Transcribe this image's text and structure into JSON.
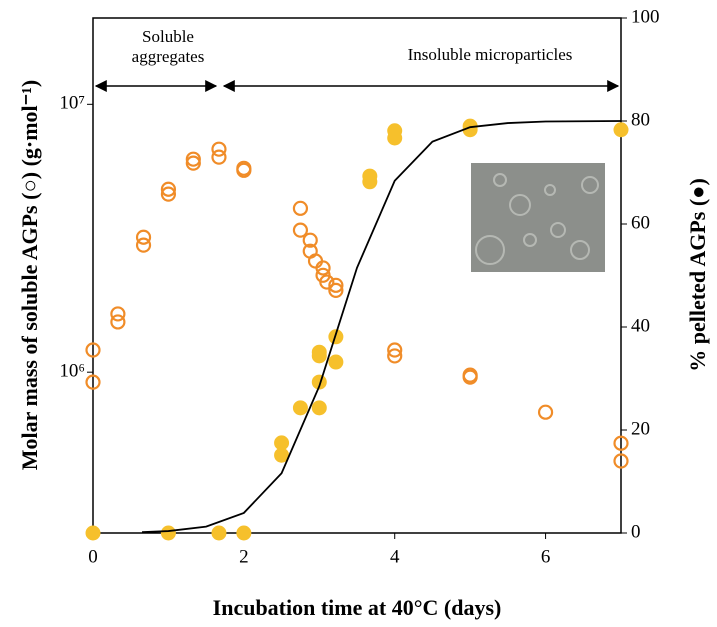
{
  "chart_data": {
    "type": "scatter",
    "x_label": "Incubation time at 40°C (days)",
    "y_label": "Molar mass of soluble AGPs (○) (g·mol⁻¹)",
    "y2_label": "% pelleted AGPs (●)",
    "annotations": [
      {
        "lines": [
          "Soluble",
          "aggregates"
        ]
      },
      {
        "lines": [
          "Insoluble microparticles"
        ]
      }
    ],
    "xlim": [
      0,
      7
    ],
    "xticks": [
      0,
      2,
      4,
      6
    ],
    "ylim": [
      251000,
      21000000
    ],
    "yscale": "log",
    "yticks": [
      {
        "value": 1000000,
        "label": "10⁶"
      },
      {
        "value": 10000000,
        "label": "10⁷"
      }
    ],
    "y2lim": [
      0,
      100
    ],
    "y2ticks": [
      0,
      20,
      40,
      60,
      80,
      100
    ],
    "series": [
      {
        "type": "scatter",
        "marker": "hollow",
        "color": "#f08c28",
        "axis": "y",
        "x": [
          0,
          0,
          0.33,
          0.33,
          0.67,
          0.67,
          1,
          1,
          1.33,
          1.33,
          1.67,
          1.67,
          2,
          2,
          2.75,
          2.75,
          2.88,
          2.88,
          2.95,
          3.05,
          3.05,
          3.1,
          3.22,
          3.22,
          4,
          4,
          5,
          5,
          6,
          7,
          7
        ],
        "values": [
          1210000,
          918000,
          1650000,
          1540000,
          3190000,
          2980000,
          4820000,
          4620000,
          6240000,
          6030000,
          6800000,
          6350000,
          5770000,
          5670000,
          4090000,
          3390000,
          3110000,
          2830000,
          2600000,
          2450000,
          2300000,
          2170000,
          2110000,
          2020000,
          1210000,
          1150000,
          975000,
          958000,
          709000,
          543000,
          466000
        ]
      },
      {
        "type": "scatter",
        "marker": "filled",
        "color": "#f6c02c",
        "axis": "y2",
        "x": [
          0,
          1,
          1.67,
          2,
          2.5,
          2.5,
          2.75,
          3,
          3,
          3,
          3,
          3.22,
          3.22,
          3.67,
          3.67,
          4,
          4,
          5,
          5,
          7
        ],
        "values": [
          0,
          0,
          0,
          0,
          17.5,
          15.1,
          24.3,
          35.1,
          34.4,
          29.3,
          24.3,
          38.1,
          33.2,
          69.3,
          68.2,
          78.1,
          76.7,
          79,
          78.3,
          78.3
        ]
      },
      {
        "type": "line",
        "color": "#000000",
        "axis": "y2",
        "x": [
          0.65,
          1,
          1.5,
          2,
          2.5,
          3,
          3.25,
          3.5,
          4,
          4.5,
          5,
          5.5,
          6,
          7
        ],
        "values": [
          0.17,
          0.38,
          1.24,
          3.9,
          11.6,
          28.5,
          40,
          51.5,
          68.4,
          76,
          78.8,
          79.6,
          79.9,
          80
        ]
      }
    ]
  }
}
